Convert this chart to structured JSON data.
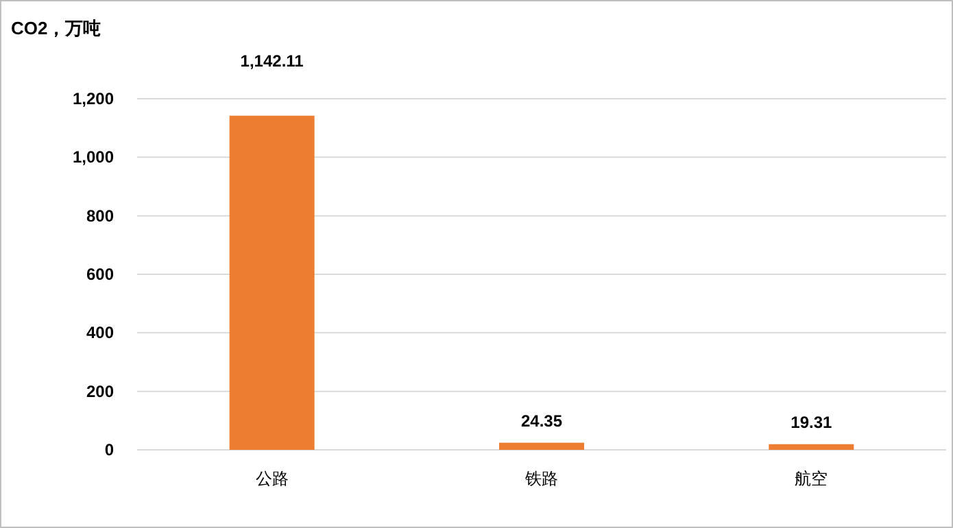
{
  "chart_data": {
    "type": "bar",
    "ylabel": "CO2，万吨",
    "categories": [
      "公路",
      "铁路",
      "航空"
    ],
    "values": [
      1142.11,
      24.35,
      19.31
    ],
    "value_labels": [
      "1,142.11",
      "24.35",
      "19.31"
    ],
    "color": "#ed7d31",
    "ylim": [
      0,
      1200
    ],
    "yticks": [
      0,
      200,
      400,
      600,
      800,
      {
        "value": 1000,
        "label": "1,000"
      },
      {
        "value": 1200,
        "label": "1,200"
      }
    ],
    "grid": "y"
  }
}
